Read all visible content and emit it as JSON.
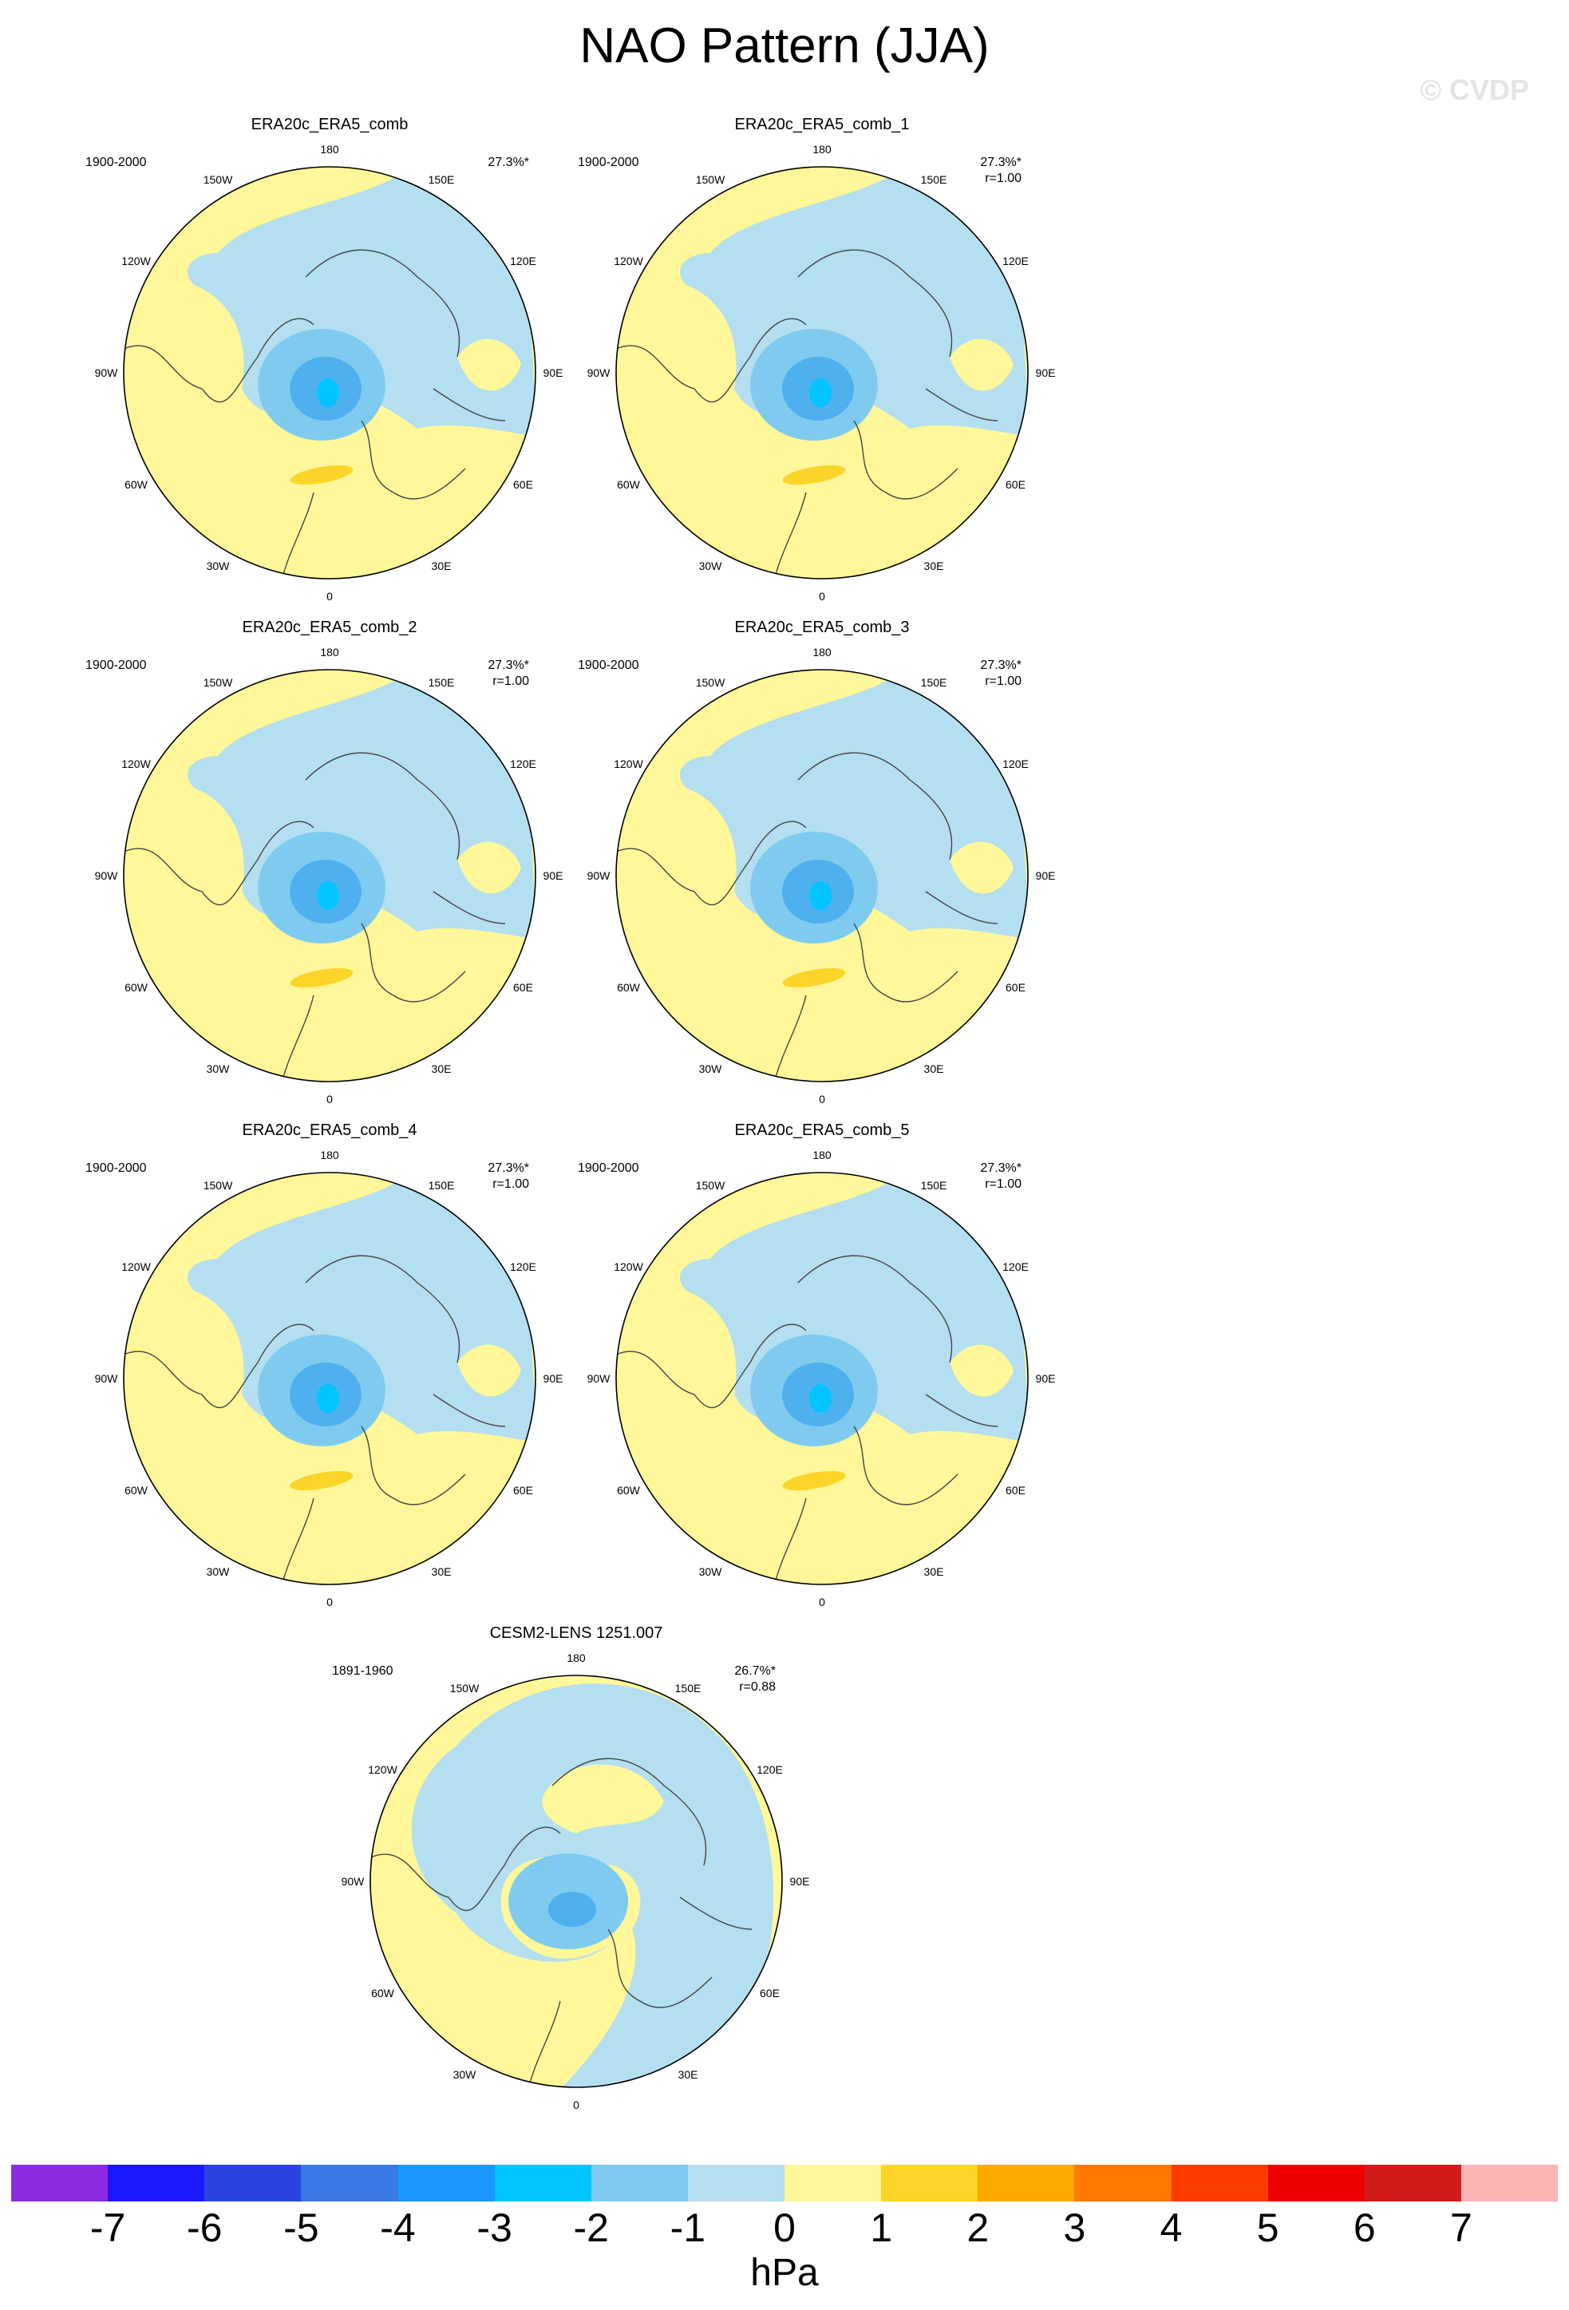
{
  "title": "NAO Pattern (JJA)",
  "watermark": "© CVDP",
  "panels": [
    {
      "title": "ERA20c_ERA5_comb",
      "period": "1900-2000",
      "pct": "27.3%*",
      "corr": ""
    },
    {
      "title": "ERA20c_ERA5_comb_1",
      "period": "1900-2000",
      "pct": "27.3%*",
      "corr": "r=1.00"
    },
    {
      "title": "ERA20c_ERA5_comb_2",
      "period": "1900-2000",
      "pct": "27.3%*",
      "corr": "r=1.00"
    },
    {
      "title": "ERA20c_ERA5_comb_3",
      "period": "1900-2000",
      "pct": "27.3%*",
      "corr": "r=1.00"
    },
    {
      "title": "ERA20c_ERA5_comb_4",
      "period": "1900-2000",
      "pct": "27.3%*",
      "corr": "r=1.00"
    },
    {
      "title": "ERA20c_ERA5_comb_5",
      "period": "1900-2000",
      "pct": "27.3%*",
      "corr": "r=1.00"
    },
    {
      "title": "CESM2-LENS 1251.007",
      "period": "1891-1960",
      "pct": "26.7%*",
      "corr": "r=0.88"
    }
  ],
  "longitude_labels": [
    "180",
    "150E",
    "120E",
    "90E",
    "60E",
    "30E",
    "0",
    "30W",
    "60W",
    "90W",
    "120W",
    "150W"
  ],
  "colorbar": {
    "unit": "hPa",
    "ticks": [
      "-7",
      "-6",
      "-5",
      "-4",
      "-3",
      "-2",
      "-1",
      "0",
      "1",
      "2",
      "3",
      "4",
      "5",
      "6",
      "7"
    ],
    "colors": [
      "#8a2be2",
      "#1a1aff",
      "#2b44e0",
      "#3a7ae6",
      "#1e96ff",
      "#00c4ff",
      "#7fcbef",
      "#b4dff0",
      "#fff799",
      "#fdd428",
      "#ffa800",
      "#ff7800",
      "#ff3c00",
      "#ee0000",
      "#d21c1c",
      "#ffb4b4"
    ]
  },
  "field_colors": {
    "positive_weak": "#fff799",
    "negative_weak": "#b4dff0",
    "negative_mid": "#7fcbef",
    "negative_strong": "#4fb0f0",
    "negative_core": "#00c4ff",
    "positive_mid": "#fdd428"
  }
}
